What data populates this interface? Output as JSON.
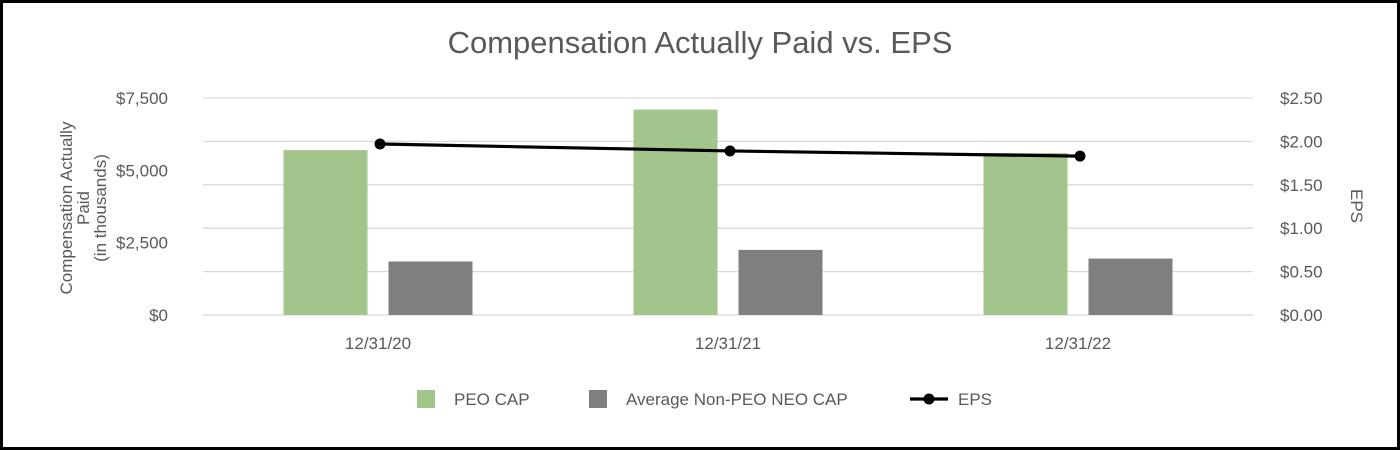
{
  "chart_data": {
    "type": "bar",
    "title": "Compensation Actually Paid vs. EPS",
    "categories": [
      "12/31/20",
      "12/31/21",
      "12/31/22"
    ],
    "series": [
      {
        "name": "PEO CAP",
        "kind": "bar",
        "axis": "left",
        "color": "#a2c58c",
        "values": [
          5700,
          7100,
          5600
        ]
      },
      {
        "name": "Average Non-PEO NEO CAP",
        "kind": "bar",
        "axis": "left",
        "color": "#7f7f7f",
        "values": [
          1850,
          2250,
          1950
        ]
      },
      {
        "name": "EPS",
        "kind": "line",
        "axis": "right",
        "color": "#000000",
        "values": [
          1.97,
          1.89,
          1.83
        ]
      }
    ],
    "ylabel_lines": [
      "Compensation Actually",
      "Paid",
      "(in thousands)"
    ],
    "y2label": "EPS",
    "ylim": [
      0,
      7500
    ],
    "y2lim": [
      0,
      2.5
    ],
    "yticks": [
      "$0",
      "$2,500",
      "$5,000",
      "$7,500"
    ],
    "y2ticks": [
      "$0.00",
      "$0.50",
      "$1.00",
      "$1.50",
      "$2.00",
      "$2.50"
    ],
    "grid": true,
    "legend_position": "bottom"
  }
}
